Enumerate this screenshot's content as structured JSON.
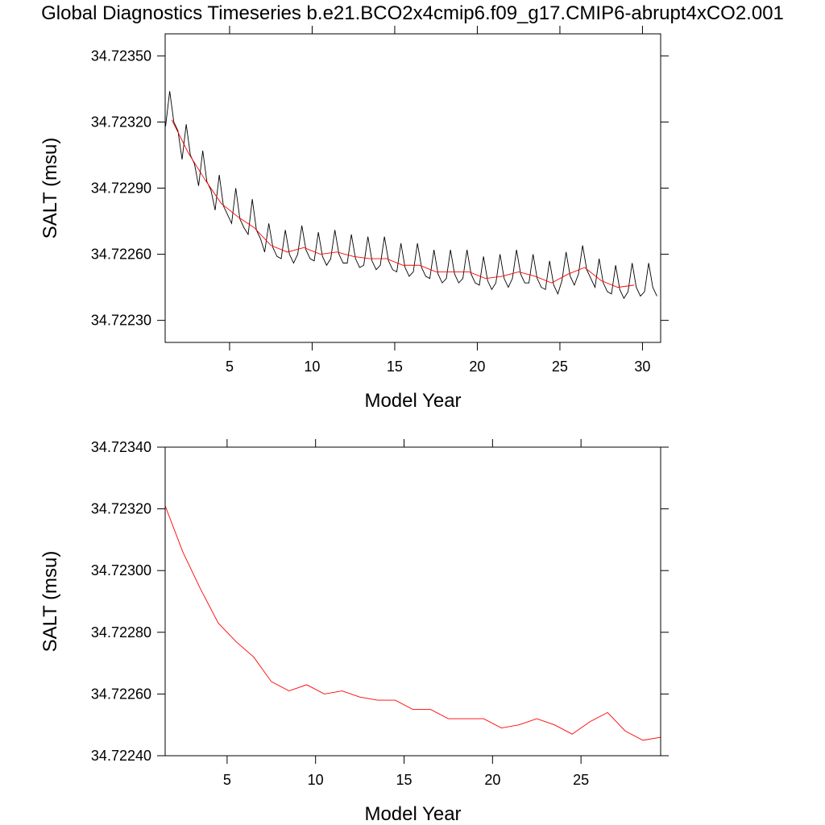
{
  "chart_data": [
    {
      "type": "line",
      "title": "Global Diagnostics Timeseries b.e21.BCO2x4cmip6.f09_g17.CMIP6-abrupt4xCO2.001",
      "xlabel": "Model Year",
      "ylabel": "SALT (msu)",
      "xlim": [
        1.1,
        31.1
      ],
      "xticks": [
        5,
        10,
        15,
        20,
        25,
        30
      ],
      "ylim": [
        34.7222,
        34.7236
      ],
      "yticks": [
        {
          "value": 34.7223,
          "label": "34.72230"
        },
        {
          "value": 34.7226,
          "label": "34.72260"
        },
        {
          "value": 34.7229,
          "label": "34.72290"
        },
        {
          "value": 34.7232,
          "label": "34.72320"
        },
        {
          "value": 34.7235,
          "label": "34.72350"
        }
      ],
      "series": [
        {
          "color": "#000000",
          "x": [
            1.125,
            1.375,
            1.625,
            1.875,
            2.125,
            2.375,
            2.625,
            2.875,
            3.125,
            3.375,
            3.625,
            3.875,
            4.125,
            4.375,
            4.625,
            4.875,
            5.125,
            5.375,
            5.625,
            5.875,
            6.125,
            6.375,
            6.625,
            6.875,
            7.125,
            7.375,
            7.625,
            7.875,
            8.125,
            8.375,
            8.625,
            8.875,
            9.125,
            9.375,
            9.625,
            9.875,
            10.125,
            10.375,
            10.625,
            10.875,
            11.125,
            11.375,
            11.625,
            11.875,
            12.125,
            12.375,
            12.625,
            12.875,
            13.125,
            13.375,
            13.625,
            13.875,
            14.125,
            14.375,
            14.625,
            14.875,
            15.125,
            15.375,
            15.625,
            15.875,
            16.125,
            16.375,
            16.625,
            16.875,
            17.125,
            17.375,
            17.625,
            17.875,
            18.125,
            18.375,
            18.625,
            18.875,
            19.125,
            19.375,
            19.625,
            19.875,
            20.125,
            20.375,
            20.625,
            20.875,
            21.125,
            21.375,
            21.625,
            21.875,
            22.125,
            22.375,
            22.625,
            22.875,
            23.125,
            23.375,
            23.625,
            23.875,
            24.125,
            24.375,
            24.625,
            24.875,
            25.125,
            25.375,
            25.625,
            25.875,
            26.125,
            26.375,
            26.625,
            26.875,
            27.125,
            27.375,
            27.625,
            27.875,
            28.125,
            28.375,
            28.625,
            28.875,
            29.125,
            29.375,
            29.625,
            29.875,
            30.125,
            30.375,
            30.625,
            30.875
          ],
          "values": [
            34.72318,
            34.72334,
            34.7232,
            34.72316,
            34.72303,
            34.72319,
            34.72305,
            34.72301,
            34.72291,
            34.72307,
            34.72293,
            34.72289,
            34.7228,
            34.72296,
            34.72282,
            34.72278,
            34.72274,
            34.7229,
            34.72276,
            34.72272,
            34.72269,
            34.72285,
            34.72271,
            34.72267,
            34.72261,
            34.72274,
            34.72263,
            34.72259,
            34.72258,
            34.72271,
            34.7226,
            34.72256,
            34.7226,
            34.72273,
            34.72262,
            34.72258,
            34.72257,
            34.7227,
            34.72259,
            34.72255,
            34.72258,
            34.72271,
            34.7226,
            34.72256,
            34.72256,
            34.72269,
            34.72258,
            34.72254,
            34.72255,
            34.72268,
            34.72257,
            34.72253,
            34.72255,
            34.72268,
            34.72257,
            34.72253,
            34.72252,
            34.72265,
            34.72254,
            34.7225,
            34.72252,
            34.72265,
            34.72254,
            34.7225,
            34.72249,
            34.72262,
            34.72251,
            34.72247,
            34.72249,
            34.72262,
            34.72251,
            34.72247,
            34.72249,
            34.72262,
            34.72251,
            34.72247,
            34.72246,
            34.72259,
            34.72248,
            34.72244,
            34.72247,
            34.7226,
            34.72249,
            34.72245,
            34.72249,
            34.72262,
            34.72251,
            34.72247,
            34.72247,
            34.7226,
            34.72249,
            34.72245,
            34.72244,
            34.72257,
            34.72246,
            34.72242,
            34.72248,
            34.72261,
            34.7225,
            34.72246,
            34.72251,
            34.72264,
            34.72253,
            34.72249,
            34.72245,
            34.72258,
            34.72247,
            34.72243,
            34.72242,
            34.72255,
            34.72244,
            34.7224,
            34.72243,
            34.72256,
            34.72245,
            34.72241,
            34.72243,
            34.72256,
            34.72245,
            34.72241
          ]
        },
        {
          "color": "#ff0000",
          "x": [
            1.5,
            2.5,
            3.5,
            4.5,
            5.5,
            6.5,
            7.5,
            8.5,
            9.5,
            10.5,
            11.5,
            12.5,
            13.5,
            14.5,
            15.5,
            16.5,
            17.5,
            18.5,
            19.5,
            20.5,
            21.5,
            22.5,
            23.5,
            24.5,
            25.5,
            26.5,
            27.5,
            28.5,
            29.5
          ],
          "values": [
            34.72321,
            34.72306,
            34.72294,
            34.72283,
            34.72277,
            34.72272,
            34.72264,
            34.72261,
            34.72263,
            34.7226,
            34.72261,
            34.72259,
            34.72258,
            34.72258,
            34.72255,
            34.72255,
            34.72252,
            34.72252,
            34.72252,
            34.72249,
            34.7225,
            34.72252,
            34.7225,
            34.72247,
            34.72251,
            34.72254,
            34.72248,
            34.72245,
            34.72246
          ]
        }
      ]
    },
    {
      "type": "line",
      "xlabel": "Model Year",
      "ylabel": "SALT (msu)",
      "xlim": [
        1.5,
        29.5
      ],
      "xticks": [
        5,
        10,
        15,
        20,
        25
      ],
      "ylim": [
        34.7224,
        34.7234
      ],
      "yticks": [
        {
          "value": 34.7224,
          "label": "34.72240"
        },
        {
          "value": 34.7226,
          "label": "34.72260"
        },
        {
          "value": 34.7228,
          "label": "34.72280"
        },
        {
          "value": 34.723,
          "label": "34.72300"
        },
        {
          "value": 34.7232,
          "label": "34.72320"
        },
        {
          "value": 34.7234,
          "label": "34.72340"
        }
      ],
      "series": [
        {
          "color": "#ff0000",
          "x": [
            1.5,
            2.5,
            3.5,
            4.5,
            5.5,
            6.5,
            7.5,
            8.5,
            9.5,
            10.5,
            11.5,
            12.5,
            13.5,
            14.5,
            15.5,
            16.5,
            17.5,
            18.5,
            19.5,
            20.5,
            21.5,
            22.5,
            23.5,
            24.5,
            25.5,
            26.5,
            27.5,
            28.5,
            29.5
          ],
          "values": [
            34.72321,
            34.72306,
            34.72294,
            34.72283,
            34.72277,
            34.72272,
            34.72264,
            34.72261,
            34.72263,
            34.7226,
            34.72261,
            34.72259,
            34.72258,
            34.72258,
            34.72255,
            34.72255,
            34.72252,
            34.72252,
            34.72252,
            34.72249,
            34.7225,
            34.72252,
            34.7225,
            34.72247,
            34.72251,
            34.72254,
            34.72248,
            34.72245,
            34.72246
          ]
        }
      ]
    }
  ]
}
